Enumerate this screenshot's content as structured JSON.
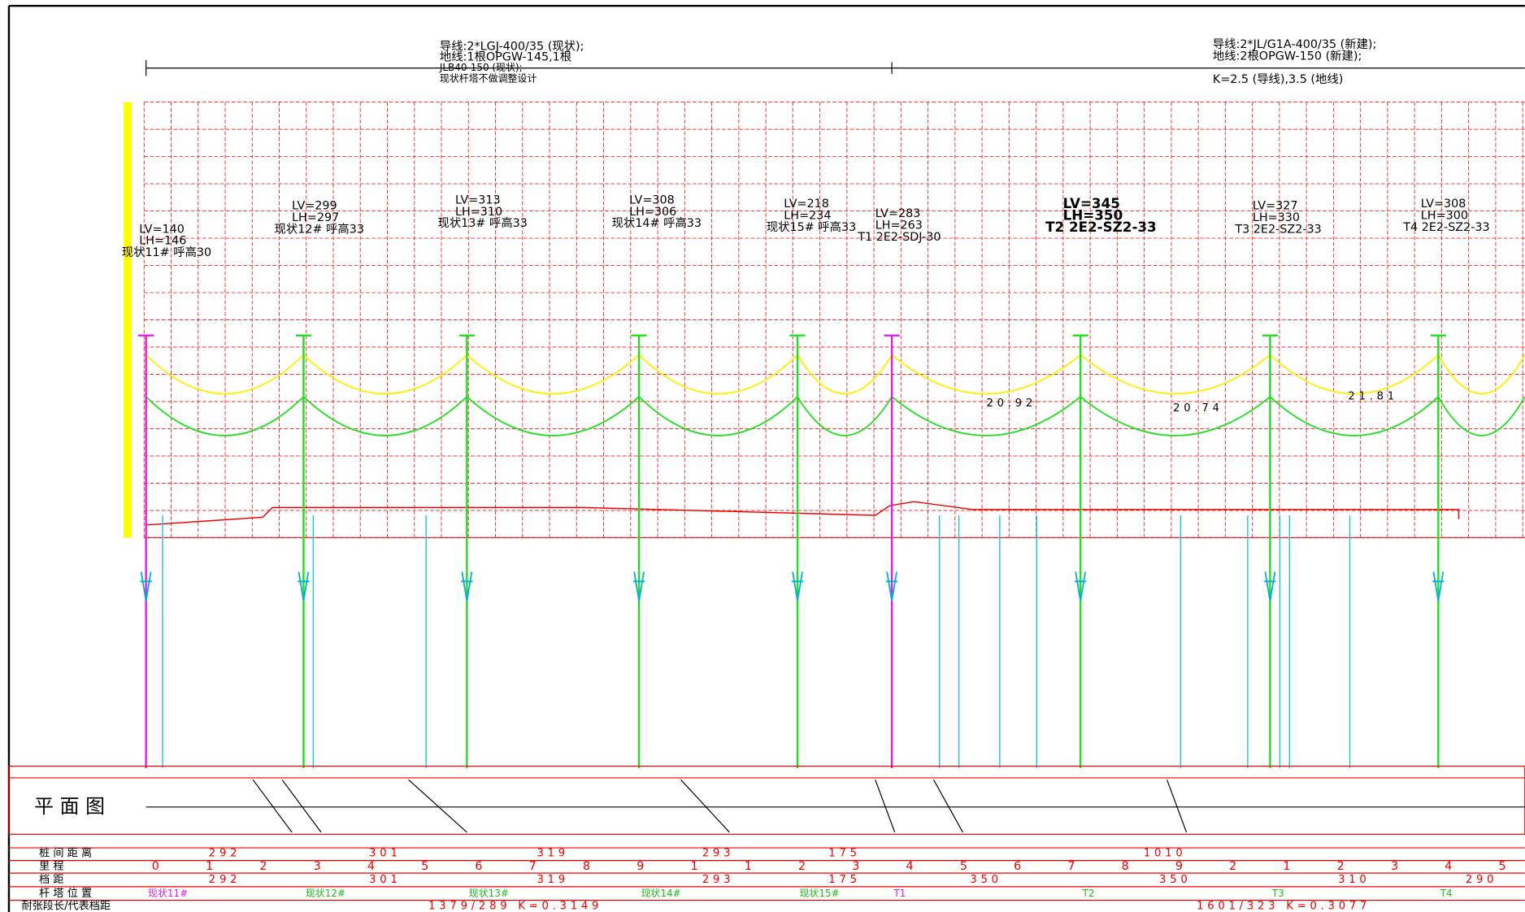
{
  "header": {
    "left_lines": [
      "导线:2*LGJ-400/35 (现状);",
      "地线:1根OPGW-145,1根",
      "JLB40-150 (现状);",
      "现状杆塔不做调整设计"
    ],
    "right_lines": [
      "导线:2*JL/G1A-400/35 (新建);",
      "地线:2根OPGW-150 (新建);",
      "K=2.5 (导线),3.5 (地线)"
    ]
  },
  "towers": [
    {
      "lv": "LV=140",
      "lh": "LH=146",
      "name": "现状11# 呼高30"
    },
    {
      "lv": "LV=299",
      "lh": "LH=297",
      "name": "现状12# 呼高33"
    },
    {
      "lv": "LV=313",
      "lh": "LH=310",
      "name": "现状13# 呼高33"
    },
    {
      "lv": "LV=308",
      "lh": "LH=306",
      "name": "现状14# 呼高33"
    },
    {
      "lv": "LV=218",
      "lh": "LH=234",
      "name": "现状15# 呼高33"
    },
    {
      "lv": "LV=283",
      "lh": "LH=263",
      "name": "T1 2E2-SDJ-30"
    },
    {
      "lv": "LV=345",
      "lh": "LH=350",
      "name": "T2 2E2-SZ2-33"
    },
    {
      "lv": "LV=327",
      "lh": "LH=330",
      "name": "T3 2E2-SZ2-33"
    },
    {
      "lv": "LV=308",
      "lh": "LH=300",
      "name": "T4 2E2-SZ2-33"
    }
  ],
  "clearances": [
    "20.92",
    "20.74",
    "21.81"
  ],
  "plan_label": "平 面 图",
  "table": {
    "row_labels": [
      "桩 间 距 离",
      "里 程",
      "档 距",
      "杆 塔 位 置",
      "耐张段长/代表档距"
    ],
    "pile_distances": [
      292,
      301,
      319,
      293,
      175,
      1010
    ],
    "mileage": [
      "0",
      "1",
      "2",
      "3",
      "4",
      "5",
      "6",
      "7",
      "8",
      "9",
      "1",
      "1",
      "2",
      "3",
      "4",
      "5",
      "6",
      "7",
      "8",
      "9",
      "2",
      "1",
      "2",
      "3",
      "4",
      "5"
    ],
    "spans": [
      292,
      301,
      319,
      293,
      175,
      350,
      350,
      310,
      290
    ],
    "positions": [
      "现状11#",
      "现状12#",
      "现状13#",
      "现状14#",
      "现状15#",
      "T1",
      "T2",
      "T3",
      "T4"
    ],
    "tension_sections": [
      "1379/289 K=0.3149",
      "1601/323 K=0.3077"
    ]
  }
}
